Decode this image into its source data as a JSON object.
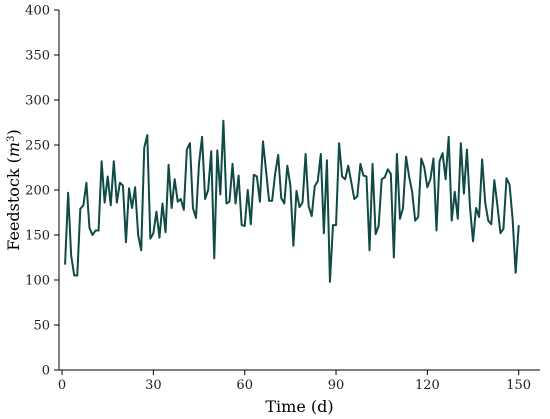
{
  "chart_data": {
    "type": "line",
    "xlabel": "Time (d)",
    "ylabel_main": "Feedstock (",
    "ylabel_unit": "m",
    "ylabel_sup": "3",
    "ylabel_close": ")",
    "xlim": [
      -1,
      157
    ],
    "ylim": [
      0,
      400
    ],
    "xticks": [
      0,
      30,
      60,
      90,
      120,
      150
    ],
    "yticks": [
      0,
      50,
      100,
      150,
      200,
      250,
      300,
      350,
      400
    ],
    "grid": false,
    "series": [
      {
        "color": "#0f4a45",
        "x": [
          1,
          2,
          3,
          4,
          5,
          6,
          7,
          8,
          9,
          10,
          11,
          12,
          13,
          14,
          15,
          16,
          17,
          18,
          19,
          20,
          21,
          22,
          23,
          24,
          25,
          26,
          27,
          28,
          29,
          30,
          31,
          32,
          33,
          34,
          35,
          36,
          37,
          38,
          39,
          40,
          41,
          42,
          43,
          44,
          45,
          46,
          47,
          48,
          49,
          50,
          51,
          52,
          53,
          54,
          55,
          56,
          57,
          58,
          59,
          60,
          61,
          62,
          63,
          64,
          65,
          66,
          67,
          68,
          69,
          70,
          71,
          72,
          73,
          74,
          75,
          76,
          77,
          78,
          79,
          80,
          81,
          82,
          83,
          84,
          85,
          86,
          87,
          88,
          89,
          90,
          91,
          92,
          93,
          94,
          95,
          96,
          97,
          98,
          99,
          100,
          101,
          102,
          103,
          104,
          105,
          106,
          107,
          108,
          109,
          110,
          111,
          112,
          113,
          114,
          115,
          116,
          117,
          118,
          119,
          120,
          121,
          122,
          123,
          124,
          125,
          126,
          127,
          128,
          129,
          130,
          131,
          132,
          133,
          134,
          135,
          136,
          137,
          138,
          139,
          140,
          141,
          142,
          143,
          144,
          145,
          146,
          147,
          148,
          149,
          150
        ],
        "y": [
          118,
          197,
          127,
          105,
          105,
          179,
          183,
          208,
          158,
          150,
          155,
          155,
          232,
          186,
          215,
          183,
          232,
          186,
          208,
          205,
          142,
          202,
          180,
          203,
          150,
          133,
          247,
          261,
          146,
          152,
          176,
          147,
          185,
          153,
          228,
          180,
          212,
          187,
          190,
          178,
          245,
          252,
          180,
          169,
          230,
          259,
          190,
          200,
          243,
          124,
          244,
          195,
          277,
          185,
          187,
          229,
          185,
          216,
          161,
          160,
          200,
          162,
          217,
          215,
          187,
          254,
          222,
          188,
          188,
          218,
          239,
          191,
          185,
          227,
          205,
          138,
          199,
          181,
          186,
          240,
          182,
          171,
          204,
          210,
          240,
          152,
          233,
          98,
          161,
          161,
          252,
          215,
          212,
          227,
          209,
          190,
          193,
          229,
          216,
          215,
          133,
          229,
          151,
          160,
          212,
          214,
          223,
          218,
          125,
          240,
          168,
          180,
          237,
          215,
          198,
          166,
          170,
          235,
          225,
          203,
          212,
          235,
          155,
          232,
          241,
          212,
          259,
          166,
          198,
          168,
          252,
          196,
          245,
          181,
          143,
          180,
          170,
          234,
          186,
          166,
          162,
          211,
          183,
          152,
          157,
          213,
          206,
          168,
          108,
          160
        ]
      }
    ]
  }
}
